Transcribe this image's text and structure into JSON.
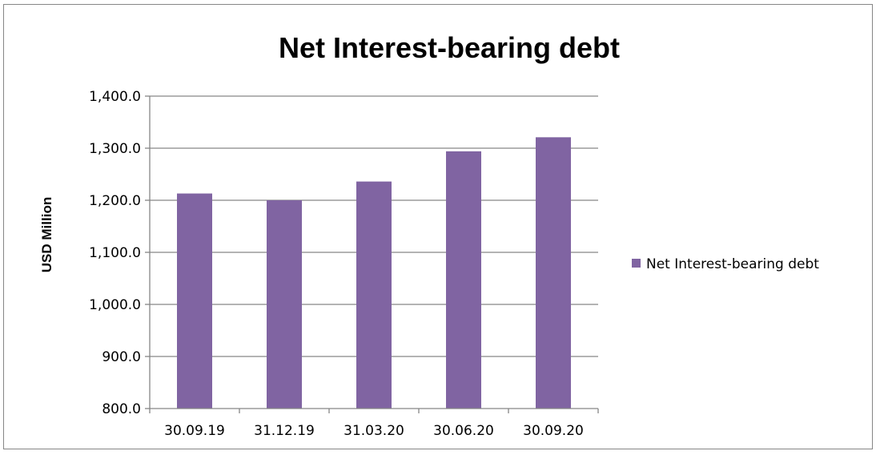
{
  "chart_data": {
    "type": "bar",
    "title": "Net Interest-bearing debt",
    "ylabel": "USD Million",
    "xlabel": "",
    "categories": [
      "30.09.19",
      "31.12.19",
      "31.03.20",
      "30.06.20",
      "30.09.20"
    ],
    "series": [
      {
        "name": "Net Interest-bearing debt",
        "values": [
          1213,
          1200,
          1236,
          1294,
          1321
        ],
        "color": "#8064A2"
      }
    ],
    "ylim": [
      800,
      1400
    ],
    "yticks": [
      800,
      900,
      1000,
      1100,
      1200,
      1300,
      1400
    ],
    "ytick_labels": [
      "800.0",
      "900.0",
      "1,000.0",
      "1,100.0",
      "1,200.0",
      "1,300.0",
      "1,400.0"
    ],
    "grid": true,
    "legend_position": "right"
  }
}
